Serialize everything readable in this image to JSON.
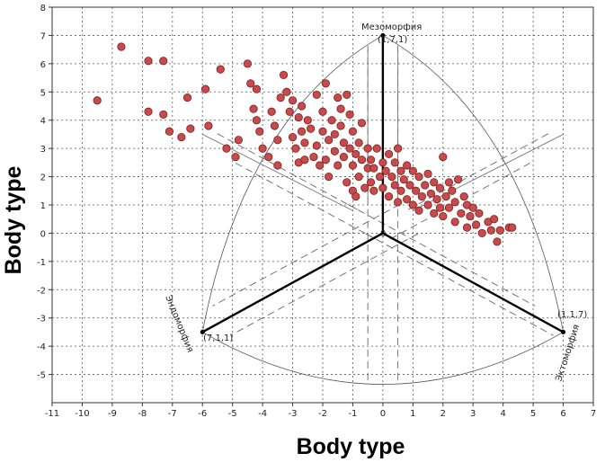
{
  "chart_data": {
    "type": "scatter",
    "xlabel": "Body type",
    "ylabel": "Body type",
    "xlim": [
      -11,
      7
    ],
    "ylim": [
      -6,
      8
    ],
    "xticks": [
      -11,
      -10,
      -9,
      -8,
      -7,
      -6,
      -5,
      -4,
      -3,
      -2,
      -1,
      0,
      1,
      2,
      3,
      4,
      5,
      6,
      7
    ],
    "yticks": [
      -5,
      -4,
      -3,
      -2,
      -1,
      0,
      1,
      2,
      3,
      4,
      5,
      6,
      7,
      8
    ],
    "grid": true,
    "annotations": {
      "meso": "Мезоморфия",
      "meso_coord": "(1,7,1)",
      "endo": "Эндоморфия",
      "endo_coord": "(7,1,1)",
      "ecto": "Эктоморфия",
      "ecto_coord": "(1,1,7)",
      "origin": "0"
    },
    "marker_color": "#c94a4a",
    "points": [
      [
        -9.5,
        4.7
      ],
      [
        -8.7,
        6.6
      ],
      [
        -7.8,
        6.1
      ],
      [
        -7.3,
        6.1
      ],
      [
        -7.8,
        4.3
      ],
      [
        -7.3,
        4.2
      ],
      [
        -7.1,
        3.6
      ],
      [
        -6.7,
        3.4
      ],
      [
        -6.5,
        4.8
      ],
      [
        -6.4,
        3.7
      ],
      [
        -5.9,
        5.1
      ],
      [
        -5.8,
        3.8
      ],
      [
        -5.4,
        5.8
      ],
      [
        -5.2,
        3.0
      ],
      [
        -4.9,
        2.7
      ],
      [
        -4.8,
        3.3
      ],
      [
        -4.5,
        6.0
      ],
      [
        -4.4,
        5.3
      ],
      [
        -4.3,
        4.4
      ],
      [
        -4.2,
        5.1
      ],
      [
        -4.2,
        4.0
      ],
      [
        -4.1,
        3.6
      ],
      [
        -4.0,
        3.0
      ],
      [
        -3.8,
        2.7
      ],
      [
        -3.7,
        4.3
      ],
      [
        -3.6,
        3.8
      ],
      [
        -3.5,
        3.3
      ],
      [
        -3.4,
        4.8
      ],
      [
        -3.5,
        2.4
      ],
      [
        -3.3,
        5.6
      ],
      [
        -3.2,
        5.0
      ],
      [
        -3.1,
        4.3
      ],
      [
        -3.0,
        4.7
      ],
      [
        -3.0,
        3.4
      ],
      [
        -2.9,
        3.0
      ],
      [
        -2.8,
        2.5
      ],
      [
        -2.8,
        4.1
      ],
      [
        -2.7,
        3.6
      ],
      [
        -2.7,
        4.5
      ],
      [
        -2.6,
        3.2
      ],
      [
        -2.6,
        2.6
      ],
      [
        -2.5,
        4.0
      ],
      [
        -2.4,
        3.7
      ],
      [
        -2.3,
        2.7
      ],
      [
        -2.2,
        4.9
      ],
      [
        -2.2,
        3.1
      ],
      [
        -2.1,
        2.4
      ],
      [
        -2.0,
        4.3
      ],
      [
        -2.0,
        3.6
      ],
      [
        -1.9,
        5.3
      ],
      [
        -1.9,
        2.6
      ],
      [
        -1.8,
        3.3
      ],
      [
        -1.8,
        2.0
      ],
      [
        -1.7,
        4.0
      ],
      [
        -1.6,
        3.5
      ],
      [
        -1.6,
        2.9
      ],
      [
        -1.5,
        4.8
      ],
      [
        -1.5,
        2.4
      ],
      [
        -1.4,
        4.4
      ],
      [
        -1.4,
        3.8
      ],
      [
        -1.3,
        3.2
      ],
      [
        -1.3,
        2.7
      ],
      [
        -1.2,
        4.9
      ],
      [
        -1.2,
        1.8
      ],
      [
        -1.1,
        4.2
      ],
      [
        -1.1,
        3.0
      ],
      [
        -1.0,
        3.6
      ],
      [
        -1.0,
        2.4
      ],
      [
        -1.0,
        1.5
      ],
      [
        -0.9,
        2.8
      ],
      [
        -0.9,
        1.3
      ],
      [
        -0.8,
        3.2
      ],
      [
        -0.8,
        2.0
      ],
      [
        -0.7,
        3.9
      ],
      [
        -0.7,
        2.6
      ],
      [
        -0.6,
        1.6
      ],
      [
        -0.5,
        2.3
      ],
      [
        -0.5,
        3.0
      ],
      [
        -0.4,
        2.6
      ],
      [
        -0.4,
        1.8
      ],
      [
        -0.3,
        2.3
      ],
      [
        -0.3,
        1.5
      ],
      [
        -0.2,
        3.0
      ],
      [
        -0.1,
        2.0
      ],
      [
        0.0,
        2.5
      ],
      [
        0.0,
        1.6
      ],
      [
        0.1,
        2.2
      ],
      [
        0.2,
        2.8
      ],
      [
        0.2,
        1.3
      ],
      [
        0.3,
        2.0
      ],
      [
        0.4,
        2.5
      ],
      [
        0.4,
        1.7
      ],
      [
        0.5,
        3.0
      ],
      [
        0.5,
        1.1
      ],
      [
        0.6,
        2.2
      ],
      [
        0.6,
        1.5
      ],
      [
        0.7,
        1.9
      ],
      [
        0.8,
        2.4
      ],
      [
        0.8,
        1.2
      ],
      [
        0.9,
        1.7
      ],
      [
        1.0,
        2.2
      ],
      [
        1.0,
        1.0
      ],
      [
        1.1,
        1.5
      ],
      [
        1.2,
        2.0
      ],
      [
        1.2,
        0.8
      ],
      [
        1.3,
        1.3
      ],
      [
        1.4,
        1.7
      ],
      [
        1.5,
        1.0
      ],
      [
        1.5,
        2.1
      ],
      [
        1.6,
        1.4
      ],
      [
        1.7,
        0.7
      ],
      [
        1.7,
        1.8
      ],
      [
        1.8,
        1.2
      ],
      [
        1.9,
        0.9
      ],
      [
        1.9,
        1.6
      ],
      [
        2.0,
        2.7
      ],
      [
        2.0,
        0.6
      ],
      [
        2.1,
        1.3
      ],
      [
        2.2,
        1.8
      ],
      [
        2.2,
        0.9
      ],
      [
        2.3,
        1.5
      ],
      [
        2.4,
        0.4
      ],
      [
        2.4,
        1.1
      ],
      [
        2.5,
        1.9
      ],
      [
        2.6,
        0.7
      ],
      [
        2.7,
        1.3
      ],
      [
        2.8,
        0.2
      ],
      [
        2.8,
        1.0
      ],
      [
        2.9,
        0.6
      ],
      [
        3.0,
        0.9
      ],
      [
        3.1,
        0.3
      ],
      [
        3.2,
        0.7
      ],
      [
        3.3,
        0.0
      ],
      [
        3.5,
        0.4
      ],
      [
        3.6,
        0.1
      ],
      [
        3.7,
        0.5
      ],
      [
        3.8,
        -0.3
      ],
      [
        3.9,
        0.1
      ],
      [
        4.2,
        0.2
      ],
      [
        4.3,
        0.2
      ]
    ]
  }
}
